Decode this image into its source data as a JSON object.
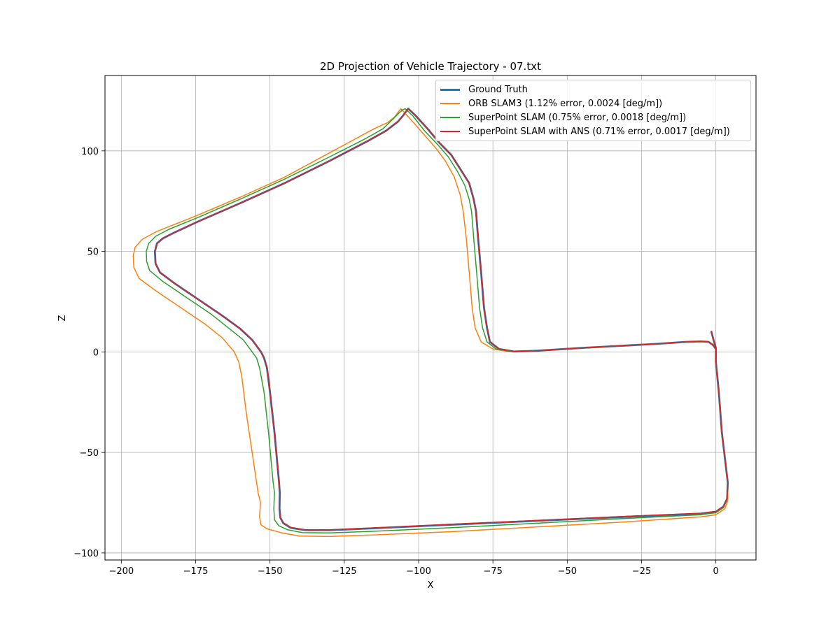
{
  "chart_data": {
    "type": "line",
    "title": "2D Projection of Vehicle Trajectory - 07.txt",
    "xlabel": "X",
    "ylabel": "Z",
    "xlim": [
      -205.5,
      13.5
    ],
    "ylim": [
      -103.5,
      137.5
    ],
    "xticks": [
      -200,
      -175,
      -150,
      -125,
      -100,
      -75,
      -50,
      -25,
      0
    ],
    "xtick_labels": [
      "−200",
      "−175",
      "−150",
      "−125",
      "−100",
      "−75",
      "−50",
      "−25",
      "0"
    ],
    "yticks": [
      -100,
      -50,
      0,
      50,
      100
    ],
    "ytick_labels": [
      "−100",
      "−50",
      "0",
      "50",
      "100"
    ],
    "grid": true,
    "legend_position": "top-right",
    "series": [
      {
        "name": "Ground Truth",
        "color": "#1f77b4",
        "linewidth": 2.8,
        "points": [
          [
            -1.5,
            10
          ],
          [
            -0.8,
            6
          ],
          [
            0,
            2
          ],
          [
            0,
            -5
          ],
          [
            1,
            -20
          ],
          [
            2,
            -40
          ],
          [
            3.2,
            -55
          ],
          [
            4,
            -65
          ],
          [
            3.8,
            -73
          ],
          [
            2.5,
            -77
          ],
          [
            0,
            -79.5
          ],
          [
            -5,
            -80.5
          ],
          [
            -30,
            -82
          ],
          [
            -60,
            -84
          ],
          [
            -90,
            -86
          ],
          [
            -115,
            -87.7
          ],
          [
            -130,
            -88.7
          ],
          [
            -138,
            -88.7
          ],
          [
            -143,
            -87.5
          ],
          [
            -145.5,
            -85.2
          ],
          [
            -146.5,
            -82.5
          ],
          [
            -146.8,
            -78
          ],
          [
            -146.7,
            -70
          ],
          [
            -147,
            -64
          ],
          [
            -148.5,
            -40
          ],
          [
            -150,
            -20
          ],
          [
            -151,
            -8
          ],
          [
            -152,
            -3
          ],
          [
            -153,
            0
          ],
          [
            -156,
            6
          ],
          [
            -160,
            11.5
          ],
          [
            -166,
            18
          ],
          [
            -174,
            26
          ],
          [
            -182,
            34
          ],
          [
            -187,
            39.5
          ],
          [
            -188.5,
            44
          ],
          [
            -188.7,
            50
          ],
          [
            -188,
            54
          ],
          [
            -186,
            56.5
          ],
          [
            -182,
            59.5
          ],
          [
            -174,
            65
          ],
          [
            -160,
            74
          ],
          [
            -145,
            84
          ],
          [
            -130,
            95
          ],
          [
            -117,
            105
          ],
          [
            -111,
            110
          ],
          [
            -107,
            114.5
          ],
          [
            -105,
            118
          ],
          [
            -104,
            120
          ],
          [
            -103.5,
            121
          ],
          [
            -101,
            117.5
          ],
          [
            -97,
            111
          ],
          [
            -93,
            104
          ],
          [
            -89,
            98
          ],
          [
            -86,
            91
          ],
          [
            -83,
            84
          ],
          [
            -81.5,
            76
          ],
          [
            -80.7,
            70
          ],
          [
            -80,
            57
          ],
          [
            -79,
            40
          ],
          [
            -78,
            22
          ],
          [
            -77,
            12
          ],
          [
            -76,
            5
          ],
          [
            -73,
            1.5
          ],
          [
            -68,
            0.2
          ],
          [
            -60,
            0.6
          ],
          [
            -45,
            2
          ],
          [
            -30,
            3.2
          ],
          [
            -20,
            4
          ],
          [
            -10,
            5
          ],
          [
            -5,
            5.2
          ],
          [
            -2.5,
            5
          ],
          [
            -1,
            3.5
          ],
          [
            0,
            1.5
          ]
        ]
      },
      {
        "name": "ORB SLAM3 (1.12% error, 0.0024 [deg/m])",
        "color": "#ff7f0e",
        "linewidth": 1.5,
        "points": [
          [
            -1.5,
            10
          ],
          [
            -0.8,
            6
          ],
          [
            0,
            2
          ],
          [
            0,
            -5
          ],
          [
            1,
            -20
          ],
          [
            2,
            -40
          ],
          [
            3.2,
            -55
          ],
          [
            4,
            -65
          ],
          [
            4,
            -74
          ],
          [
            3,
            -78
          ],
          [
            0,
            -81
          ],
          [
            -5,
            -82
          ],
          [
            -30,
            -84.5
          ],
          [
            -60,
            -87
          ],
          [
            -90,
            -89.5
          ],
          [
            -115,
            -91
          ],
          [
            -130,
            -91.8
          ],
          [
            -140,
            -91.6
          ],
          [
            -146,
            -90
          ],
          [
            -151,
            -88
          ],
          [
            -153,
            -86
          ],
          [
            -153.5,
            -82
          ],
          [
            -153.2,
            -75
          ],
          [
            -154,
            -70
          ],
          [
            -156,
            -50
          ],
          [
            -158,
            -30
          ],
          [
            -159.5,
            -12
          ],
          [
            -160.5,
            -5
          ],
          [
            -162,
            0
          ],
          [
            -166,
            7
          ],
          [
            -172,
            14
          ],
          [
            -180,
            22
          ],
          [
            -188,
            30
          ],
          [
            -194,
            36.5
          ],
          [
            -195.8,
            42
          ],
          [
            -196,
            48
          ],
          [
            -195.4,
            52
          ],
          [
            -193,
            56
          ],
          [
            -188,
            60
          ],
          [
            -176,
            67
          ],
          [
            -160,
            77
          ],
          [
            -145,
            87
          ],
          [
            -130,
            99
          ],
          [
            -120,
            107
          ],
          [
            -115,
            111
          ],
          [
            -110.5,
            114
          ],
          [
            -108,
            117
          ],
          [
            -106.5,
            120
          ],
          [
            -106,
            121
          ],
          [
            -103.5,
            117
          ],
          [
            -99,
            109.5
          ],
          [
            -94,
            101
          ],
          [
            -91,
            95
          ],
          [
            -88,
            87
          ],
          [
            -86,
            78
          ],
          [
            -85,
            70
          ],
          [
            -84,
            57
          ],
          [
            -83,
            40
          ],
          [
            -82,
            22
          ],
          [
            -81,
            12
          ],
          [
            -79,
            5
          ],
          [
            -75,
            1.5
          ],
          [
            -70,
            0.2
          ],
          [
            -60,
            0.6
          ],
          [
            -45,
            2
          ],
          [
            -30,
            3.2
          ],
          [
            -20,
            4
          ],
          [
            -10,
            5
          ],
          [
            -5,
            5.2
          ],
          [
            -2.5,
            5
          ],
          [
            -1,
            3.5
          ],
          [
            0,
            1.5
          ]
        ]
      },
      {
        "name": "SuperPoint SLAM (0.75% error, 0.0018 [deg/m])",
        "color": "#2ca02c",
        "linewidth": 1.5,
        "points": [
          [
            -1.5,
            10
          ],
          [
            -0.8,
            6
          ],
          [
            0,
            2
          ],
          [
            0,
            -5
          ],
          [
            1,
            -20
          ],
          [
            2,
            -40
          ],
          [
            3.2,
            -55
          ],
          [
            4,
            -65
          ],
          [
            3.8,
            -73
          ],
          [
            2.5,
            -77.5
          ],
          [
            0,
            -80
          ],
          [
            -5,
            -81
          ],
          [
            -30,
            -82.8
          ],
          [
            -60,
            -85.2
          ],
          [
            -90,
            -87.5
          ],
          [
            -115,
            -89.2
          ],
          [
            -130,
            -90
          ],
          [
            -139,
            -89.9
          ],
          [
            -144,
            -88.5
          ],
          [
            -147,
            -86.5
          ],
          [
            -148.5,
            -83.5
          ],
          [
            -148.7,
            -78
          ],
          [
            -148.5,
            -70
          ],
          [
            -149,
            -64
          ],
          [
            -150.5,
            -40
          ],
          [
            -152,
            -20
          ],
          [
            -153.5,
            -8
          ],
          [
            -154.5,
            -3
          ],
          [
            -156,
            0
          ],
          [
            -159,
            6
          ],
          [
            -164,
            12
          ],
          [
            -170,
            19
          ],
          [
            -178,
            27
          ],
          [
            -186,
            35
          ],
          [
            -190.5,
            40.5
          ],
          [
            -191.5,
            45
          ],
          [
            -191.6,
            50
          ],
          [
            -190.8,
            54
          ],
          [
            -188.5,
            57.5
          ],
          [
            -184,
            61
          ],
          [
            -174,
            67
          ],
          [
            -160,
            76
          ],
          [
            -145,
            86
          ],
          [
            -130,
            97
          ],
          [
            -118,
            106
          ],
          [
            -112,
            111
          ],
          [
            -108.5,
            116
          ],
          [
            -106.5,
            119
          ],
          [
            -105.3,
            120.5
          ],
          [
            -104.5,
            121
          ],
          [
            -102,
            117.5
          ],
          [
            -98,
            110
          ],
          [
            -93.5,
            103
          ],
          [
            -90,
            97
          ],
          [
            -87,
            90
          ],
          [
            -84.5,
            83
          ],
          [
            -83,
            76
          ],
          [
            -82.2,
            70
          ],
          [
            -81.5,
            57
          ],
          [
            -80.5,
            40
          ],
          [
            -79.5,
            22
          ],
          [
            -78.5,
            12
          ],
          [
            -77,
            5
          ],
          [
            -74,
            1.5
          ],
          [
            -69,
            0.2
          ],
          [
            -60,
            0.6
          ],
          [
            -45,
            2
          ],
          [
            -30,
            3.2
          ],
          [
            -20,
            4
          ],
          [
            -10,
            5
          ],
          [
            -5,
            5.2
          ],
          [
            -2.5,
            5
          ],
          [
            -1,
            3.5
          ],
          [
            0,
            1.5
          ]
        ]
      },
      {
        "name": "SuperPoint SLAM with ANS (0.71% error, 0.0017 [deg/m])",
        "color": "#d62728",
        "linewidth": 1.6,
        "points": [
          [
            -1.5,
            10
          ],
          [
            -0.8,
            6
          ],
          [
            0,
            2
          ],
          [
            0,
            -5
          ],
          [
            1,
            -20
          ],
          [
            2,
            -40
          ],
          [
            3.2,
            -55
          ],
          [
            4,
            -65
          ],
          [
            3.8,
            -73
          ],
          [
            2.5,
            -77
          ],
          [
            0,
            -79.3
          ],
          [
            -5,
            -80.2
          ],
          [
            -30,
            -81.8
          ],
          [
            -60,
            -83.8
          ],
          [
            -90,
            -85.8
          ],
          [
            -115,
            -87.5
          ],
          [
            -130,
            -88.5
          ],
          [
            -138,
            -88.5
          ],
          [
            -143,
            -87.3
          ],
          [
            -145.5,
            -85
          ],
          [
            -146.5,
            -82.5
          ],
          [
            -146.8,
            -78
          ],
          [
            -146.7,
            -70
          ],
          [
            -147,
            -64
          ],
          [
            -148.5,
            -40
          ],
          [
            -150,
            -20
          ],
          [
            -151,
            -8
          ],
          [
            -152,
            -3
          ],
          [
            -153,
            0
          ],
          [
            -156,
            6
          ],
          [
            -160,
            11.5
          ],
          [
            -166,
            18
          ],
          [
            -174,
            26
          ],
          [
            -182,
            34
          ],
          [
            -187,
            39.5
          ],
          [
            -188.5,
            44
          ],
          [
            -188.7,
            50
          ],
          [
            -188,
            54
          ],
          [
            -186,
            56.5
          ],
          [
            -182,
            59.5
          ],
          [
            -174,
            65
          ],
          [
            -160,
            74
          ],
          [
            -145,
            84
          ],
          [
            -130,
            95
          ],
          [
            -117,
            105
          ],
          [
            -111,
            110
          ],
          [
            -107,
            114.5
          ],
          [
            -105,
            118
          ],
          [
            -104,
            120
          ],
          [
            -103.5,
            121
          ],
          [
            -101,
            117.5
          ],
          [
            -97,
            111
          ],
          [
            -93,
            104
          ],
          [
            -89,
            98
          ],
          [
            -86,
            91
          ],
          [
            -83,
            84
          ],
          [
            -81.5,
            76
          ],
          [
            -80.7,
            70
          ],
          [
            -80,
            57
          ],
          [
            -79,
            40
          ],
          [
            -78,
            22
          ],
          [
            -77,
            12
          ],
          [
            -76,
            5
          ],
          [
            -73,
            1.5
          ],
          [
            -68,
            0.2
          ],
          [
            -60,
            0.6
          ],
          [
            -45,
            2
          ],
          [
            -30,
            3.2
          ],
          [
            -20,
            4
          ],
          [
            -10,
            5
          ],
          [
            -5,
            5.2
          ],
          [
            -2.5,
            5
          ],
          [
            -1,
            3.5
          ],
          [
            0,
            1.5
          ]
        ]
      }
    ]
  }
}
